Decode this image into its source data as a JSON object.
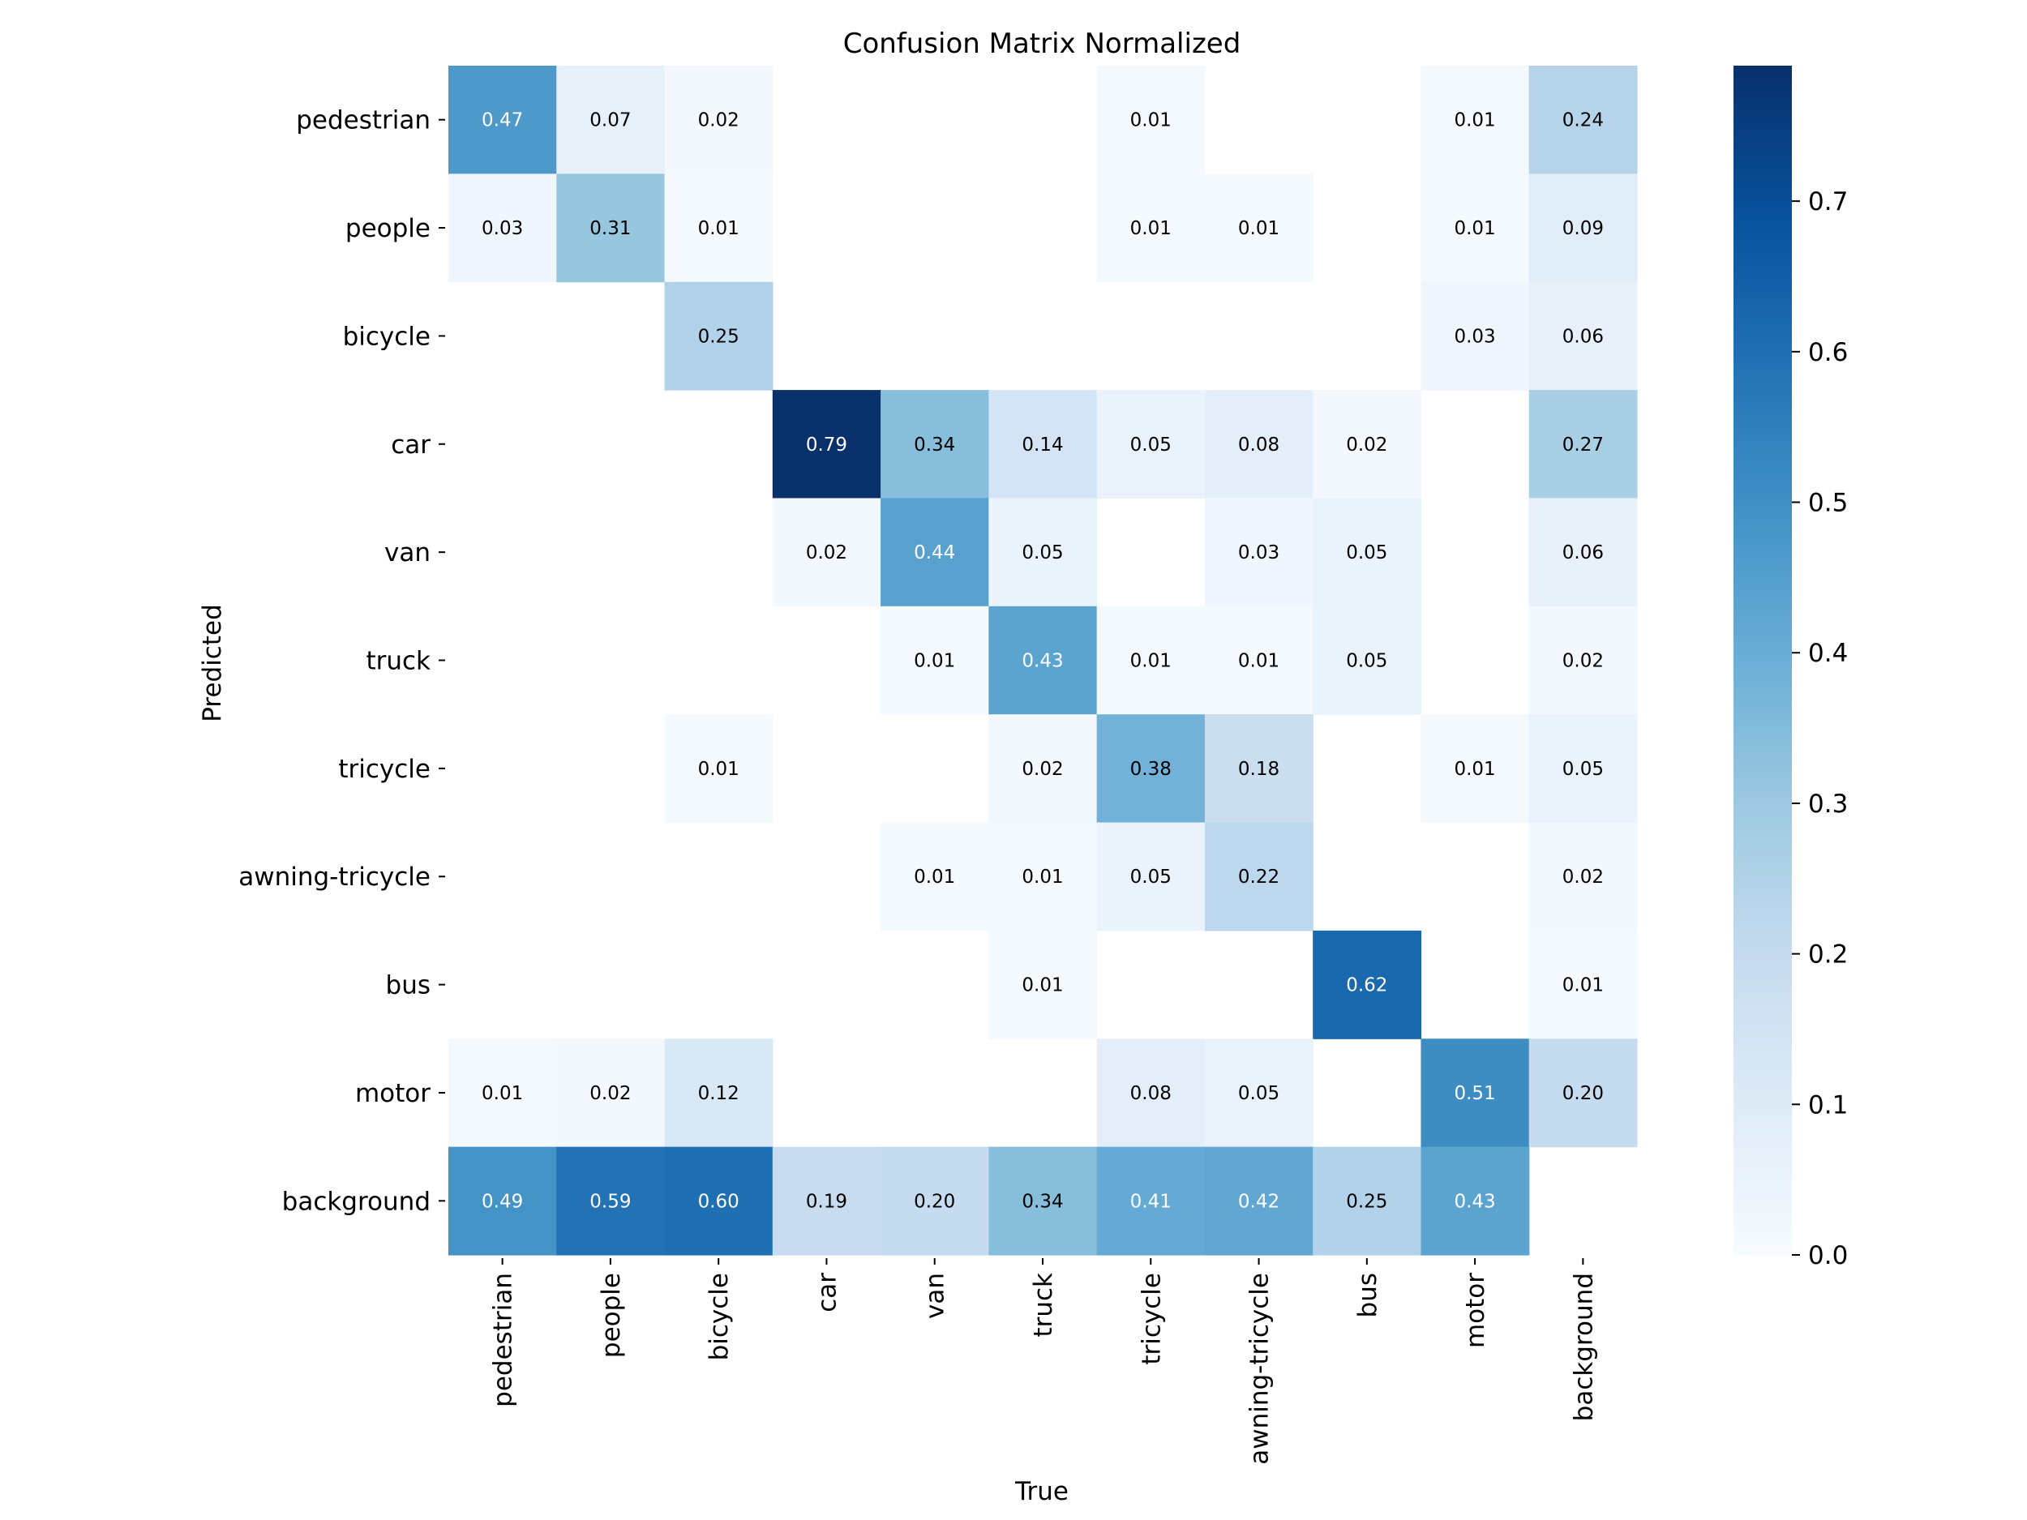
{
  "chart_data": {
    "type": "heatmap",
    "title": "Confusion Matrix Normalized",
    "xlabel": "True",
    "ylabel": "Predicted",
    "x_categories": [
      "pedestrian",
      "people",
      "bicycle",
      "car",
      "van",
      "truck",
      "tricycle",
      "awning-tricycle",
      "bus",
      "motor",
      "background"
    ],
    "y_categories": [
      "pedestrian",
      "people",
      "bicycle",
      "car",
      "van",
      "truck",
      "tricycle",
      "awning-tricycle",
      "bus",
      "motor",
      "background"
    ],
    "values": [
      [
        0.47,
        0.07,
        0.02,
        null,
        null,
        null,
        0.01,
        null,
        null,
        0.01,
        0.24
      ],
      [
        0.03,
        0.31,
        0.01,
        null,
        null,
        null,
        0.01,
        0.01,
        null,
        0.01,
        0.09
      ],
      [
        null,
        null,
        0.25,
        null,
        null,
        null,
        null,
        null,
        null,
        0.03,
        0.06
      ],
      [
        null,
        null,
        null,
        0.79,
        0.34,
        0.14,
        0.05,
        0.08,
        0.02,
        null,
        0.27
      ],
      [
        null,
        null,
        null,
        0.02,
        0.44,
        0.05,
        null,
        0.03,
        0.05,
        null,
        0.06
      ],
      [
        null,
        null,
        null,
        null,
        0.01,
        0.43,
        0.01,
        0.01,
        0.05,
        null,
        0.02
      ],
      [
        null,
        null,
        0.01,
        null,
        null,
        0.02,
        0.38,
        0.18,
        null,
        0.01,
        0.05
      ],
      [
        null,
        null,
        null,
        null,
        0.01,
        0.01,
        0.05,
        0.22,
        null,
        null,
        0.02
      ],
      [
        null,
        null,
        null,
        null,
        null,
        0.01,
        null,
        null,
        0.62,
        null,
        0.01
      ],
      [
        0.01,
        0.02,
        0.12,
        null,
        null,
        null,
        0.08,
        0.05,
        null,
        0.51,
        0.2
      ],
      [
        0.49,
        0.59,
        0.6,
        0.19,
        0.2,
        0.34,
        0.41,
        0.42,
        0.25,
        0.43,
        null
      ]
    ],
    "colorbar": {
      "range": [
        0.0,
        0.79
      ],
      "ticks": [
        0.0,
        0.1,
        0.2,
        0.3,
        0.4,
        0.5,
        0.6,
        0.7
      ],
      "tick_labels": [
        "0.0",
        "0.1",
        "0.2",
        "0.3",
        "0.4",
        "0.5",
        "0.6",
        "0.7"
      ]
    },
    "colormap": "Blues",
    "grid": false,
    "legend": "colorbar-right"
  }
}
